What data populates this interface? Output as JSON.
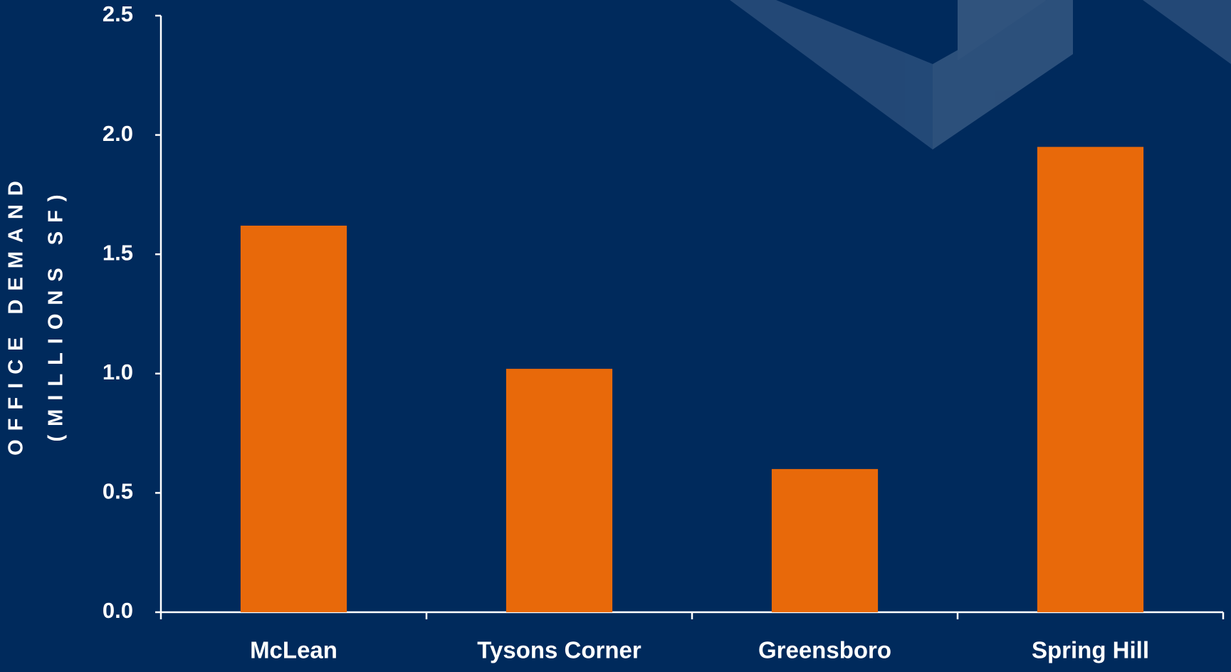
{
  "chart_data": {
    "type": "bar",
    "y_label_lines": [
      "OFFICE DEMAND",
      "(MILLIONS SF)"
    ],
    "categories": [
      "McLean",
      "Tysons Corner",
      "Greensboro",
      "Spring Hill"
    ],
    "values": [
      1.62,
      1.02,
      0.6,
      1.95
    ],
    "color": "#e8690a",
    "ylim": [
      0,
      2.5
    ],
    "yticks": [
      {
        "value": 0,
        "label": "0.0"
      },
      0.5,
      {
        "value": 1,
        "label": "1.0"
      },
      1.5,
      {
        "value": 2,
        "label": "2.0"
      },
      2.5
    ]
  }
}
